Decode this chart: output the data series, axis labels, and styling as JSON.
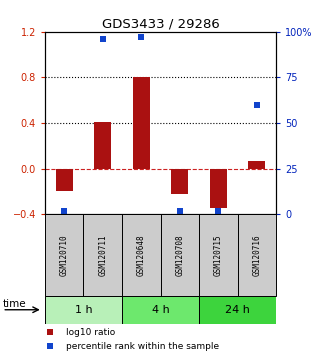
{
  "title": "GDS3433 / 29286",
  "samples": [
    "GSM120710",
    "GSM120711",
    "GSM120648",
    "GSM120708",
    "GSM120715",
    "GSM120716"
  ],
  "log10_ratio": [
    -0.2,
    0.41,
    0.8,
    -0.22,
    -0.35,
    0.07
  ],
  "percentile_rank": [
    2,
    96,
    97,
    2,
    2,
    60
  ],
  "groups": [
    {
      "label": "1 h",
      "indices": [
        0,
        1
      ],
      "color": "#b8f0b8"
    },
    {
      "label": "4 h",
      "indices": [
        2,
        3
      ],
      "color": "#6de86d"
    },
    {
      "label": "24 h",
      "indices": [
        4,
        5
      ],
      "color": "#3dd43d"
    }
  ],
  "ylim_left": [
    -0.4,
    1.2
  ],
  "ylim_right": [
    0,
    100
  ],
  "bar_color": "#aa1111",
  "dot_color": "#1144cc",
  "dotted_lines": [
    0.4,
    0.8
  ],
  "background_color": "#ffffff",
  "plot_bg": "#ffffff",
  "legend_red_label": "log10 ratio",
  "legend_blue_label": "percentile rank within the sample",
  "time_label": "time"
}
